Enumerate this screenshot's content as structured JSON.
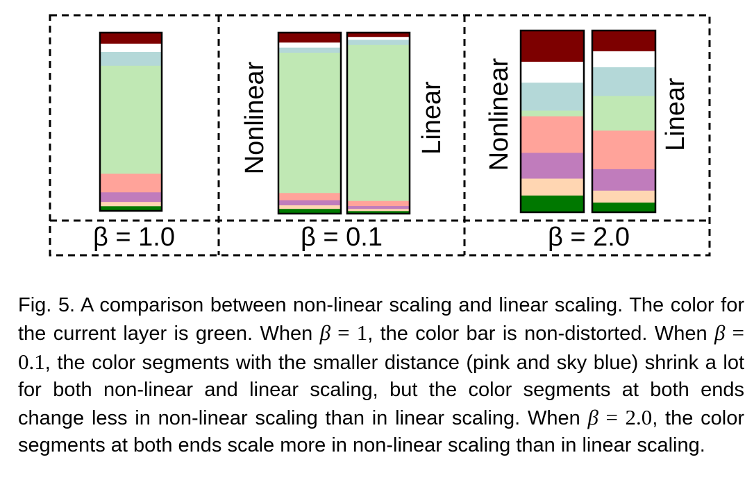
{
  "palette": {
    "darkred": "#7d0000",
    "white": "#ffffff",
    "skyblue": "#b4d8d8",
    "lightgreen": "#c0e8b4",
    "pink": "#ffa39a",
    "purple": "#c07cbc",
    "peach": "#ffd6b2",
    "green": "#007800"
  },
  "panels": [
    {
      "label": "β = 1.0",
      "bars": [
        {
          "side_label": "",
          "segments": [
            {
              "color": "darkred",
              "size": 0.062
            },
            {
              "color": "white",
              "size": 0.047
            },
            {
              "color": "skyblue",
              "size": 0.077
            },
            {
              "color": "lightgreen",
              "size": 0.606
            },
            {
              "color": "pink",
              "size": 0.104
            },
            {
              "color": "purple",
              "size": 0.054
            },
            {
              "color": "peach",
              "size": 0.024
            },
            {
              "color": "green",
              "size": 0.026
            }
          ]
        }
      ]
    },
    {
      "label": "β = 0.1",
      "bars": [
        {
          "side_label": "Nonlinear",
          "segments": [
            {
              "color": "darkred",
              "size": 0.055
            },
            {
              "color": "white",
              "size": 0.028
            },
            {
              "color": "skyblue",
              "size": 0.028
            },
            {
              "color": "lightgreen",
              "size": 0.775
            },
            {
              "color": "pink",
              "size": 0.04
            },
            {
              "color": "purple",
              "size": 0.028
            },
            {
              "color": "peach",
              "size": 0.02
            },
            {
              "color": "green",
              "size": 0.026
            }
          ]
        },
        {
          "side_label": "Linear",
          "segments": [
            {
              "color": "darkred",
              "size": 0.024
            },
            {
              "color": "white",
              "size": 0.016
            },
            {
              "color": "skyblue",
              "size": 0.028
            },
            {
              "color": "lightgreen",
              "size": 0.862
            },
            {
              "color": "pink",
              "size": 0.028
            },
            {
              "color": "purple",
              "size": 0.016
            },
            {
              "color": "peach",
              "size": 0.012
            },
            {
              "color": "green",
              "size": 0.014
            }
          ]
        }
      ]
    },
    {
      "label": "β = 2.0",
      "bars": [
        {
          "side_label": "Nonlinear",
          "segments": [
            {
              "color": "darkred",
              "size": 0.172
            },
            {
              "color": "white",
              "size": 0.115
            },
            {
              "color": "skyblue",
              "size": 0.154
            },
            {
              "color": "lightgreen",
              "size": 0.031
            },
            {
              "color": "pink",
              "size": 0.201
            },
            {
              "color": "purple",
              "size": 0.142
            },
            {
              "color": "peach",
              "size": 0.093
            },
            {
              "color": "green",
              "size": 0.092
            }
          ]
        },
        {
          "side_label": "Linear",
          "segments": [
            {
              "color": "darkred",
              "size": 0.114
            },
            {
              "color": "white",
              "size": 0.088
            },
            {
              "color": "skyblue",
              "size": 0.158
            },
            {
              "color": "lightgreen",
              "size": 0.191
            },
            {
              "color": "pink",
              "size": 0.212
            },
            {
              "color": "purple",
              "size": 0.118
            },
            {
              "color": "peach",
              "size": 0.066
            },
            {
              "color": "green",
              "size": 0.053
            }
          ]
        }
      ]
    }
  ],
  "caption": {
    "p1": "Fig. 5. A comparison between non-linear scaling and linear scaling. The color for the current layer is green. When ",
    "m1_sym": "β",
    "m1_eq": " = ",
    "m1_val": "1",
    "p2": ", the color bar is non-distorted. When ",
    "m2_sym": "β",
    "m2_eq": " = ",
    "m2_val": "0.1",
    "p3": ", the color segments with the smaller distance (pink and sky blue) shrink a lot for both non-linear and linear scaling, but the color segments at both ends change less in non-linear scaling than in linear scaling. When ",
    "m3_sym": "β",
    "m3_eq": " = ",
    "m3_val": "2.0",
    "p4": ", the color segments at both ends scale more in non-linear scaling than in linear scaling."
  }
}
